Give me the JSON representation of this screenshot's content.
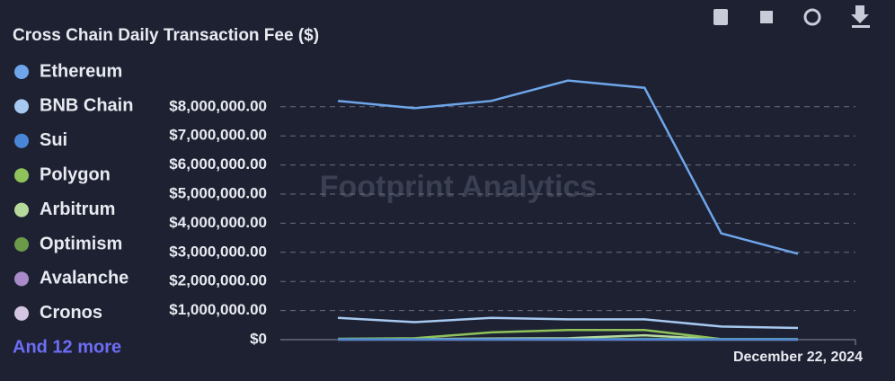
{
  "chart_data": {
    "type": "line",
    "title": "Cross Chain Daily Transaction Fee ($)",
    "watermark": "Footprint Analytics",
    "more_label": "And 12 more",
    "categories": [
      null,
      null,
      null,
      null,
      null,
      null,
      "December 22, 2024"
    ],
    "series": [
      {
        "name": "Ethereum",
        "color": "#6fa6ea",
        "values": [
          8200000,
          7950000,
          8200000,
          8900000,
          8650000,
          3650000,
          2950000
        ]
      },
      {
        "name": "BNB Chain",
        "color": "#a7c9f0",
        "values": [
          750000,
          600000,
          750000,
          700000,
          700000,
          450000,
          400000
        ]
      },
      {
        "name": "Sui",
        "color": "#4a86d8",
        "values": [
          10000,
          10000,
          10000,
          10000,
          10000,
          10000,
          10000
        ]
      },
      {
        "name": "Polygon",
        "color": "#8fc25a",
        "values": [
          30000,
          50000,
          250000,
          330000,
          330000,
          20000,
          20000
        ]
      },
      {
        "name": "Arbitrum",
        "color": "#b6d99c",
        "values": [
          20000,
          20000,
          40000,
          50000,
          150000,
          10000,
          10000
        ]
      },
      {
        "name": "Optimism",
        "color": "#6b9a48",
        "values": [
          10000,
          10000,
          20000,
          20000,
          30000,
          10000,
          10000
        ]
      },
      {
        "name": "Avalanche",
        "color": "#a98bc9",
        "values": [
          5000,
          5000,
          5000,
          5000,
          5000,
          5000,
          5000
        ]
      },
      {
        "name": "Cronos",
        "color": "#d3c4e2",
        "values": [
          3000,
          3000,
          3000,
          3000,
          3000,
          3000,
          3000
        ]
      }
    ],
    "ylim": [
      0,
      9000000
    ],
    "yticks": [
      {
        "value": 0,
        "label": "$0"
      },
      {
        "value": 1000000,
        "label": "$1,000,000.00"
      },
      {
        "value": 2000000,
        "label": "$2,000,000.00"
      },
      {
        "value": 3000000,
        "label": "$3,000,000.00"
      },
      {
        "value": 4000000,
        "label": "$4,000,000.00"
      },
      {
        "value": 5000000,
        "label": "$5,000,000.00"
      },
      {
        "value": 6000000,
        "label": "$6,000,000.00"
      },
      {
        "value": 7000000,
        "label": "$7,000,000.00"
      },
      {
        "value": 8000000,
        "label": "$8,000,000.00"
      }
    ],
    "grid": true
  }
}
